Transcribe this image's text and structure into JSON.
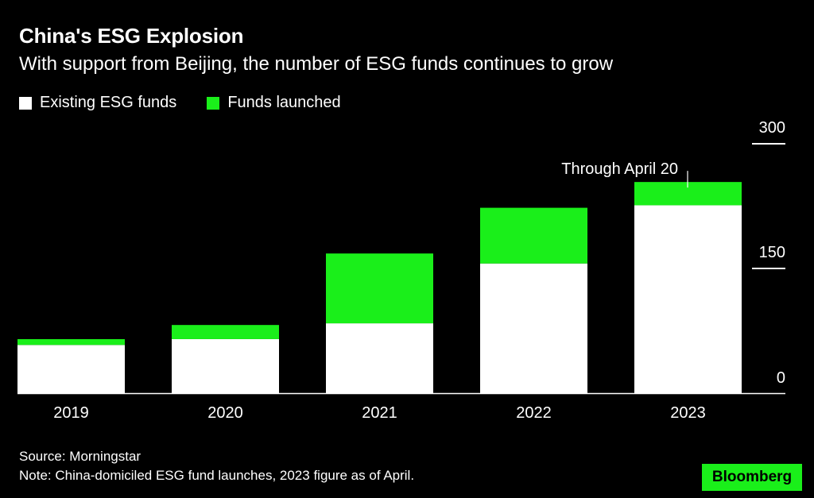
{
  "title": "China's ESG Explosion",
  "subtitle": "With support from Beijing, the number of ESG funds continues to grow",
  "legend": [
    {
      "label": "Existing ESG funds",
      "color": "#ffffff"
    },
    {
      "label": "Funds launched",
      "color": "#1aef1a"
    }
  ],
  "annotation": {
    "text": "Through April 20",
    "category": "2023"
  },
  "footer": {
    "source": "Source: Morningstar",
    "note": "Note: China-domiciled ESG fund launches, 2023 figure as of April."
  },
  "brand": {
    "label": "Bloomberg",
    "color": "#1aef1a"
  },
  "chart_data": {
    "type": "bar",
    "stacked": true,
    "categories": [
      "2019",
      "2020",
      "2021",
      "2022",
      "2023"
    ],
    "series": [
      {
        "name": "Existing ESG funds",
        "color": "#ffffff",
        "values": [
          58,
          65,
          84,
          156,
          226
        ]
      },
      {
        "name": "Funds launched",
        "color": "#1aef1a",
        "values": [
          7,
          17,
          84,
          67,
          28
        ]
      }
    ],
    "title": "China's ESG Explosion",
    "subtitle": "With support from Beijing, the number of ESG funds continues to grow",
    "xlabel": "",
    "ylabel": "",
    "ylim": [
      0,
      300
    ],
    "yticks": [
      0,
      150,
      300
    ],
    "y_axis_side": "right",
    "grid": false,
    "legend_position": "top-left"
  }
}
